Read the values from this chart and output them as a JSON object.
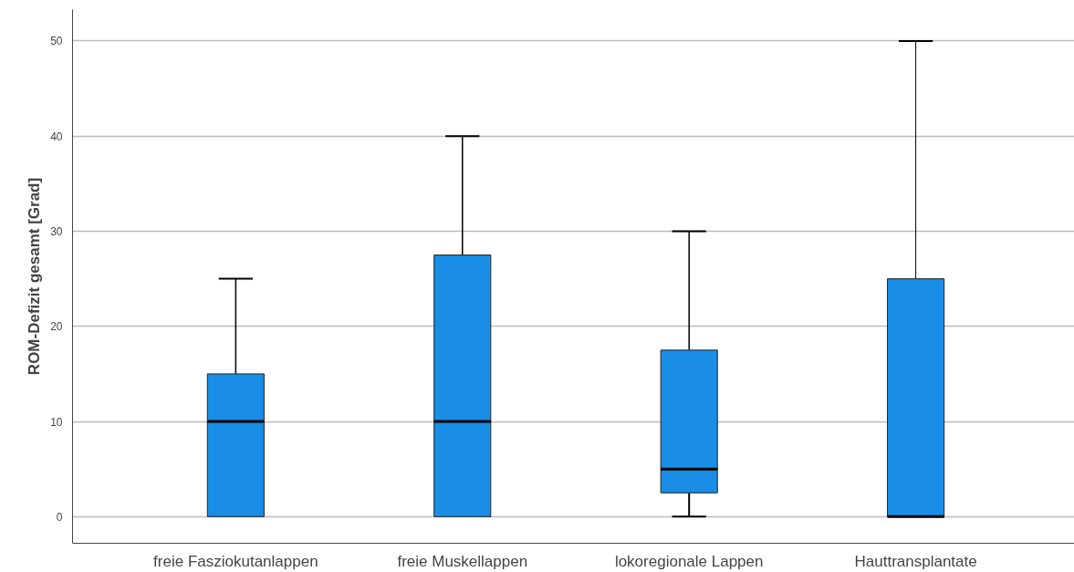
{
  "chart_data": {
    "type": "box",
    "ylabel": "ROM-Defizit gesamt [Grad]",
    "categories": [
      "freie Fasziokutanlappen",
      "freie Muskellappen",
      "lokoregionale Lappen",
      "Hauttransplantate"
    ],
    "boxes": [
      {
        "low": 0,
        "q1": 0,
        "median": 10,
        "q3": 15,
        "high": 25
      },
      {
        "low": 0,
        "q1": 0,
        "median": 10,
        "q3": 27.5,
        "high": 40
      },
      {
        "low": 0,
        "q1": 2.5,
        "median": 5,
        "q3": 17.5,
        "high": 30
      },
      {
        "low": 0,
        "q1": 0,
        "median": 0,
        "q3": 25,
        "high": 50
      }
    ],
    "color": "#1a8ee6",
    "ylim": [
      -2.8,
      53.3
    ],
    "yticks": [
      0,
      10,
      20,
      30,
      40,
      50
    ],
    "grid": "y"
  }
}
